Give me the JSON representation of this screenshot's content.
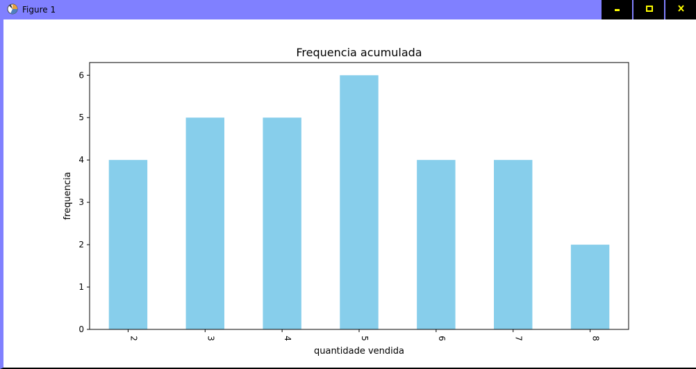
{
  "window": {
    "title": "Figure 1",
    "icons": {
      "app": "figure-app-icon",
      "minimize": "minimize-icon",
      "maximize": "maximize-icon",
      "close": "close-icon"
    },
    "colors": {
      "titlebar": "#8080ff",
      "buttons": "#000000",
      "button_glyph": "#ffff00"
    }
  },
  "chart_data": {
    "type": "bar",
    "title": "Frequencia acumulada",
    "xlabel": "quantidade vendida",
    "ylabel": "frequencia",
    "categories": [
      "2",
      "3",
      "4",
      "5",
      "6",
      "7",
      "8"
    ],
    "values": [
      4,
      5,
      5,
      6,
      4,
      4,
      2
    ],
    "ylim": [
      0,
      6.3
    ],
    "yticks": [
      "0",
      "1",
      "2",
      "3",
      "4",
      "5",
      "6"
    ],
    "xtick_rotation": "vertical",
    "bar_color": "#87ceeb",
    "grid": false,
    "legend": "none"
  }
}
